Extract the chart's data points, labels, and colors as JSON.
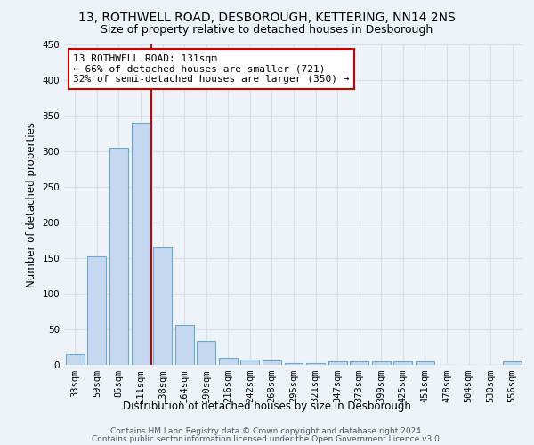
{
  "title1": "13, ROTHWELL ROAD, DESBOROUGH, KETTERING, NN14 2NS",
  "title2": "Size of property relative to detached houses in Desborough",
  "xlabel": "Distribution of detached houses by size in Desborough",
  "ylabel": "Number of detached properties",
  "footnote1": "Contains HM Land Registry data © Crown copyright and database right 2024.",
  "footnote2": "Contains public sector information licensed under the Open Government Licence v3.0.",
  "bar_labels": [
    "33sqm",
    "59sqm",
    "85sqm",
    "111sqm",
    "138sqm",
    "164sqm",
    "190sqm",
    "216sqm",
    "242sqm",
    "268sqm",
    "295sqm",
    "321sqm",
    "347sqm",
    "373sqm",
    "399sqm",
    "425sqm",
    "451sqm",
    "478sqm",
    "504sqm",
    "530sqm",
    "556sqm"
  ],
  "bar_values": [
    15,
    153,
    305,
    340,
    165,
    56,
    34,
    10,
    8,
    6,
    3,
    2,
    5,
    5,
    5,
    5,
    5,
    0,
    0,
    0,
    5
  ],
  "bar_color": "#c5d8ef",
  "bar_edge_color": "#6aaad4",
  "ylim": [
    0,
    450
  ],
  "yticks": [
    0,
    50,
    100,
    150,
    200,
    250,
    300,
    350,
    400,
    450
  ],
  "vline_pos": 3.5,
  "vline_color": "#cc0000",
  "annotation_text": "13 ROTHWELL ROAD: 131sqm\n← 66% of detached houses are smaller (721)\n32% of semi-detached houses are larger (350) →",
  "annotation_box_color": "#ffffff",
  "annotation_box_edge": "#cc0000",
  "bg_color": "#eef2f9",
  "grid_color": "#d8dfe8",
  "title_fontsize": 10,
  "subtitle_fontsize": 9,
  "axis_label_fontsize": 8.5,
  "tick_fontsize": 7.5,
  "annotation_fontsize": 8,
  "footnote_fontsize": 6.5
}
